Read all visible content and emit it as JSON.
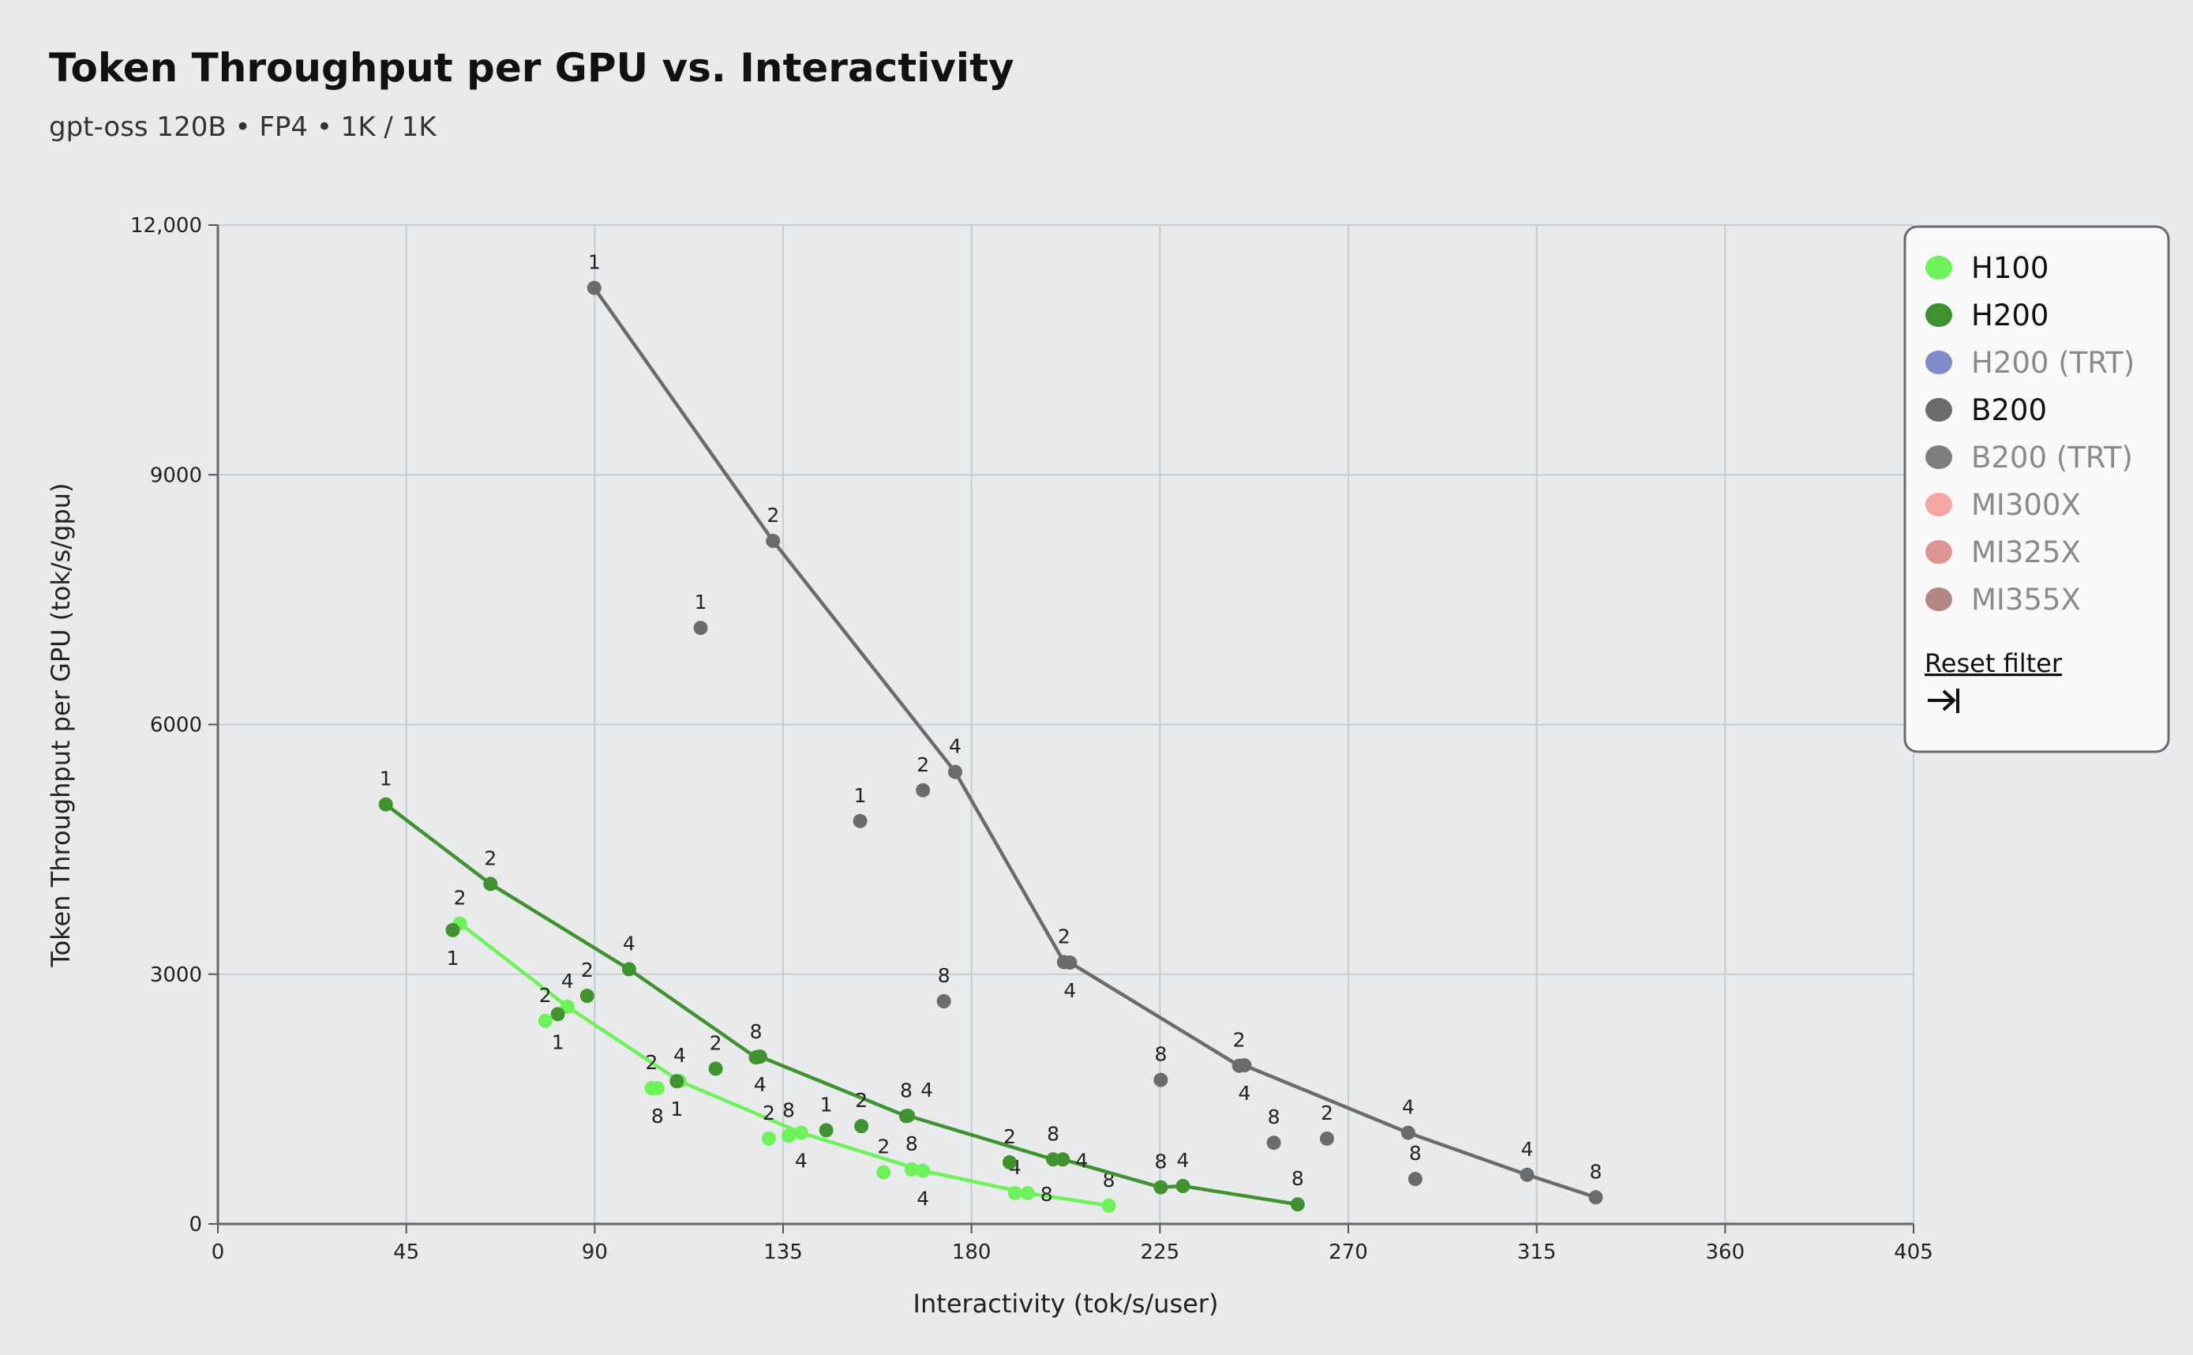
{
  "chart_data": {
    "type": "scatter",
    "title": "Token Throughput per GPU vs. Interactivity",
    "subtitle": "gpt-oss 120B • FP4 • 1K / 1K",
    "xlabel": "Interactivity (tok/s/user)",
    "ylabel": "Token Throughput per GPU (tok/s/gpu)",
    "xlim": [
      0,
      405
    ],
    "ylim": [
      0,
      12000
    ],
    "x_ticks": [
      "0",
      "45",
      "90",
      "135",
      "180",
      "225",
      "270",
      "315",
      "360",
      "405"
    ],
    "y_ticks": [
      "0",
      "3000",
      "6000",
      "9000",
      "12,000"
    ],
    "grid": true,
    "legend_position": "top-right",
    "series": [
      {
        "name": "H100",
        "color": "#6ef25a",
        "frontier": [
          {
            "x": 57.8,
            "y": 3610,
            "label": "2"
          },
          {
            "x": 83.5,
            "y": 2610,
            "label": "4"
          },
          {
            "x": 110.3,
            "y": 1715,
            "label": "4"
          },
          {
            "x": 139.3,
            "y": 1095,
            "label": "4"
          },
          {
            "x": 168.4,
            "y": 640,
            "label": "4"
          },
          {
            "x": 193.4,
            "y": 370,
            "label": "8"
          },
          {
            "x": 212.8,
            "y": 220,
            "label": "8"
          }
        ],
        "points": [
          {
            "x": 78.2,
            "y": 2440,
            "label": "2"
          },
          {
            "x": 103.6,
            "y": 1630,
            "label": "2"
          },
          {
            "x": 105,
            "y": 1630,
            "label": "8"
          },
          {
            "x": 131.6,
            "y": 1025,
            "label": "2"
          },
          {
            "x": 136.3,
            "y": 1060,
            "label": "8"
          },
          {
            "x": 159,
            "y": 620,
            "label": "2"
          },
          {
            "x": 165.7,
            "y": 655,
            "label": "8"
          },
          {
            "x": 190.4,
            "y": 370,
            "label": "4"
          }
        ]
      },
      {
        "name": "H200",
        "color": "#3f922f",
        "frontier": [
          {
            "x": 40.1,
            "y": 5040,
            "label": "1"
          },
          {
            "x": 65.1,
            "y": 4085,
            "label": "2"
          },
          {
            "x": 98.2,
            "y": 3060,
            "label": "4"
          },
          {
            "x": 128.5,
            "y": 2000,
            "label": "8"
          },
          {
            "x": 129.5,
            "y": 2010,
            "label": "4"
          },
          {
            "x": 164.4,
            "y": 1295,
            "label": "8"
          },
          {
            "x": 164.8,
            "y": 1300,
            "label": "4"
          },
          {
            "x": 199.5,
            "y": 775,
            "label": "8"
          },
          {
            "x": 201.8,
            "y": 775,
            "label": "4"
          },
          {
            "x": 225.2,
            "y": 440,
            "label": "8"
          },
          {
            "x": 230.5,
            "y": 455,
            "label": "4"
          },
          {
            "x": 257.9,
            "y": 235,
            "label": "8"
          }
        ],
        "points": [
          {
            "x": 56.1,
            "y": 3530,
            "label": "1"
          },
          {
            "x": 81.2,
            "y": 2520,
            "label": "1"
          },
          {
            "x": 88.2,
            "y": 2740,
            "label": "2"
          },
          {
            "x": 109.6,
            "y": 1715,
            "label": "1"
          },
          {
            "x": 118.9,
            "y": 1865,
            "label": "2"
          },
          {
            "x": 145.3,
            "y": 1125,
            "label": "1"
          },
          {
            "x": 153.7,
            "y": 1175,
            "label": "2"
          },
          {
            "x": 189.1,
            "y": 740,
            "label": "2"
          }
        ]
      },
      {
        "name": "B200",
        "color": "#6b6b6b",
        "frontier": [
          {
            "x": 89.9,
            "y": 11245,
            "label": "1"
          },
          {
            "x": 132.6,
            "y": 8205,
            "label": "2"
          },
          {
            "x": 176.1,
            "y": 5430,
            "label": "4"
          },
          {
            "x": 202.1,
            "y": 3145,
            "label": "2"
          },
          {
            "x": 203.5,
            "y": 3140,
            "label": "4"
          },
          {
            "x": 243.9,
            "y": 1900,
            "label": "2"
          },
          {
            "x": 245.2,
            "y": 1905,
            "label": "4"
          },
          {
            "x": 284.3,
            "y": 1095,
            "label": "4"
          },
          {
            "x": 312.7,
            "y": 590,
            "label": "4"
          },
          {
            "x": 329.1,
            "y": 320,
            "label": "8"
          }
        ],
        "points": [
          {
            "x": 115.3,
            "y": 7160,
            "label": "1"
          },
          {
            "x": 153.4,
            "y": 4840,
            "label": "1"
          },
          {
            "x": 168.4,
            "y": 5210,
            "label": "2"
          },
          {
            "x": 173.4,
            "y": 2675,
            "label": "8"
          },
          {
            "x": 225.2,
            "y": 1730,
            "label": "8"
          },
          {
            "x": 252.2,
            "y": 975,
            "label": "8"
          },
          {
            "x": 264.9,
            "y": 1025,
            "label": "2"
          },
          {
            "x": 286,
            "y": 540,
            "label": "8"
          }
        ]
      }
    ]
  },
  "legend": {
    "items": [
      {
        "label": "H100",
        "color": "#6ef25a",
        "active": true
      },
      {
        "label": "H200",
        "color": "#3f922f",
        "active": true
      },
      {
        "label": "H200 (TRT)",
        "color": "#7f8bc8",
        "active": false
      },
      {
        "label": "B200",
        "color": "#6b6b6b",
        "active": true
      },
      {
        "label": "B200 (TRT)",
        "color": "#7d7d7d",
        "active": false
      },
      {
        "label": "MI300X",
        "color": "#f4a6a2",
        "active": false
      },
      {
        "label": "MI325X",
        "color": "#dc9592",
        "active": false
      },
      {
        "label": "MI355X",
        "color": "#b58782",
        "active": false
      }
    ],
    "reset_label": "Reset filter",
    "collapse_icon": "arrow-right-to-bar-icon"
  }
}
